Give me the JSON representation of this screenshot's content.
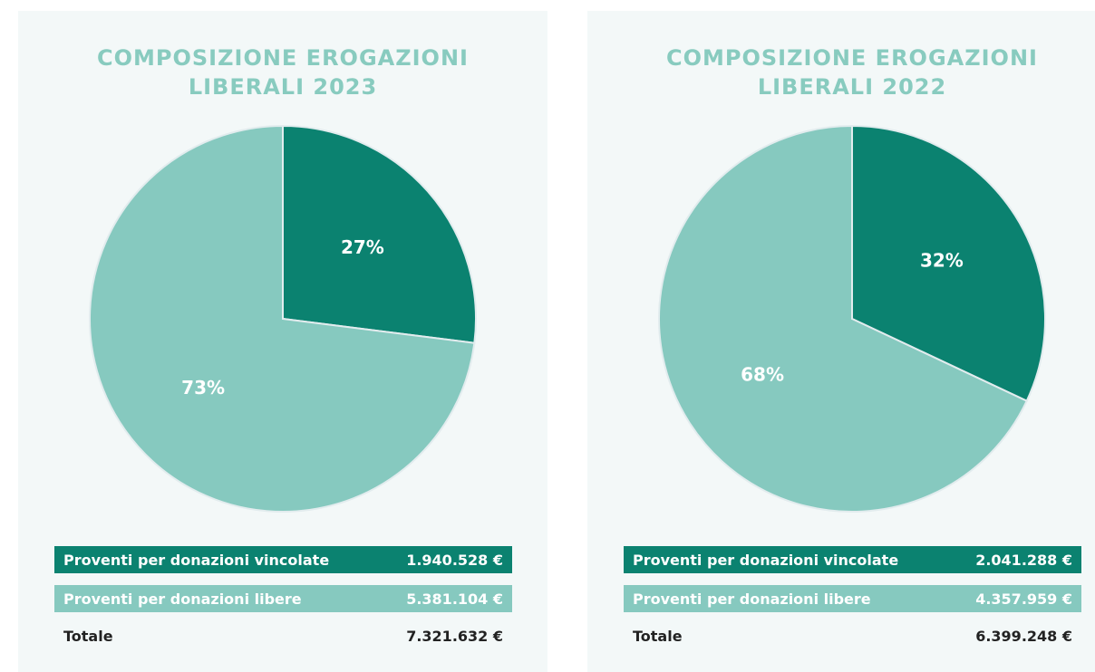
{
  "chart_data": [
    {
      "type": "pie",
      "title": "COMPOSIZIONE EROGAZIONI LIBERALI 2023",
      "categories": [
        "Proventi per donazioni vincolate",
        "Proventi per donazioni libere"
      ],
      "values": [
        27,
        73
      ],
      "value_labels": [
        "27%",
        "73%"
      ],
      "colors": [
        "#0b8270",
        "#86c9bf"
      ],
      "amounts": [
        "1.940.528 €",
        "5.381.104 €"
      ],
      "total_label": "Totale",
      "total": "7.321.632 €"
    },
    {
      "type": "pie",
      "title": "COMPOSIZIONE EROGAZIONI LIBERALI 2022",
      "categories": [
        "Proventi per donazioni vincolate",
        "Proventi per donazioni libere"
      ],
      "values": [
        32,
        68
      ],
      "value_labels": [
        "32%",
        "68%"
      ],
      "colors": [
        "#0b8270",
        "#86c9bf"
      ],
      "amounts": [
        "2.041.288 €",
        "4.357.959 €"
      ],
      "total_label": "Totale",
      "total": "6.399.248 €"
    }
  ]
}
